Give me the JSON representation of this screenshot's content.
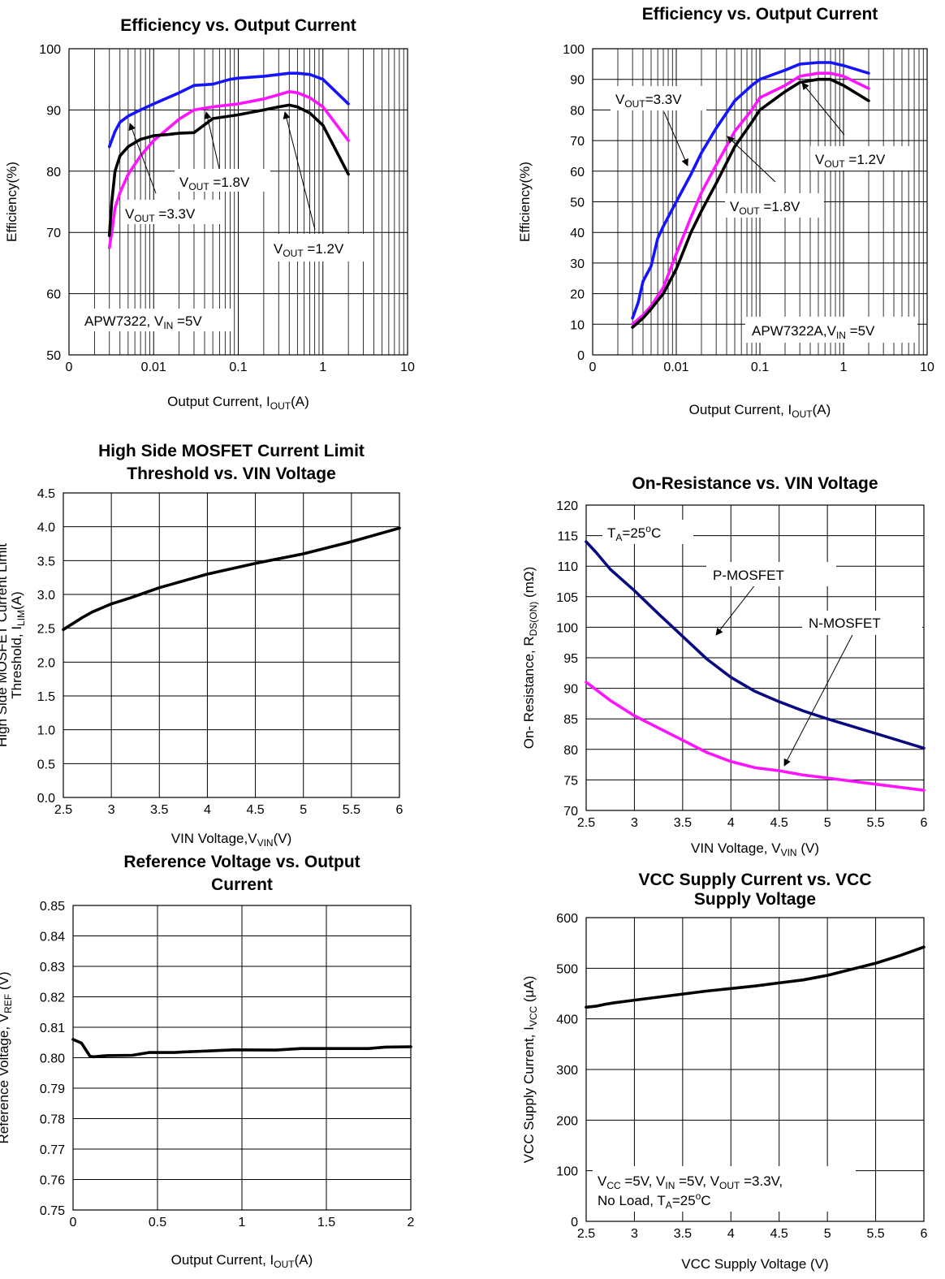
{
  "chart_data": [
    {
      "id": "c1",
      "type": "line",
      "title": "Efficiency vs. Output Current",
      "xlabel": {
        "main": "Output Current, I",
        "sub": "OUT",
        "tail": "(A)"
      },
      "ylabel": {
        "main": "Efficiency(%)",
        "sub": "",
        "tail": ""
      },
      "xscale": "log",
      "xlim": [
        0.001,
        10
      ],
      "ylim": [
        50,
        100
      ],
      "xticks": [
        0.001,
        0.01,
        0.1,
        1,
        10
      ],
      "xtick_labels": [
        "0",
        "0.01",
        "0.1",
        "1",
        "10"
      ],
      "yticks": [
        50,
        60,
        70,
        80,
        90,
        100
      ],
      "ytick_labels": [
        "50",
        "60",
        "70",
        "80",
        "90",
        "100"
      ],
      "grid": true,
      "series": [
        {
          "name": "VOUT=3.3V",
          "color": "#1414ff",
          "x": [
            0.003,
            0.0035,
            0.004,
            0.005,
            0.007,
            0.01,
            0.02,
            0.03,
            0.05,
            0.08,
            0.1,
            0.2,
            0.4,
            0.5,
            0.7,
            1,
            2
          ],
          "y": [
            84,
            86.5,
            88,
            89,
            90,
            91,
            92.8,
            94,
            94.2,
            95,
            95.2,
            95.5,
            96,
            96,
            95.8,
            95,
            91
          ]
        },
        {
          "name": "VOUT=1.8V",
          "color": "#ff14ff",
          "x": [
            0.003,
            0.0032,
            0.0035,
            0.004,
            0.005,
            0.007,
            0.01,
            0.02,
            0.03,
            0.05,
            0.1,
            0.2,
            0.3,
            0.4,
            0.5,
            0.7,
            1,
            2
          ],
          "y": [
            67.5,
            70,
            74,
            76.5,
            79.5,
            82.5,
            85,
            88.5,
            90,
            90.5,
            91,
            91.8,
            92.5,
            93,
            92.8,
            92,
            90.5,
            85
          ]
        },
        {
          "name": "VOUT=1.2V",
          "color": "#000000",
          "x": [
            0.003,
            0.0032,
            0.0035,
            0.004,
            0.005,
            0.007,
            0.01,
            0.015,
            0.02,
            0.03,
            0.05,
            0.08,
            0.1,
            0.2,
            0.3,
            0.4,
            0.5,
            0.7,
            1,
            2
          ],
          "y": [
            69.5,
            75,
            80,
            82.5,
            84,
            85.2,
            85.8,
            86,
            86.2,
            86.3,
            88.6,
            89,
            89.2,
            90,
            90.5,
            90.8,
            90.5,
            89.5,
            87.5,
            79.5
          ]
        }
      ],
      "annotations": [
        {
          "prefix": "V",
          "sub": "OUT",
          "suffix": " =3.3V"
        },
        {
          "prefix": "V",
          "sub": "OUT",
          "suffix": " =1.8V"
        },
        {
          "prefix": "V",
          "sub": "OUT",
          "suffix": " =1.2V"
        },
        {
          "prefix": "APW7322, V",
          "sub": "IN",
          "suffix": " =5V"
        }
      ]
    },
    {
      "id": "c2",
      "type": "line",
      "title": "Efficiency vs. Output Current",
      "xlabel": {
        "main": "Output Current, I",
        "sub": "OUT",
        "tail": "(A)"
      },
      "ylabel": {
        "main": "Efficiency(%)",
        "sub": "",
        "tail": ""
      },
      "xscale": "log",
      "xlim": [
        0.001,
        10
      ],
      "ylim": [
        0,
        100
      ],
      "xticks": [
        0.001,
        0.01,
        0.1,
        1,
        10
      ],
      "xtick_labels": [
        "0",
        "0.01",
        "0.1",
        "1",
        "10"
      ],
      "yticks": [
        0,
        10,
        20,
        30,
        40,
        50,
        60,
        70,
        80,
        90,
        100
      ],
      "ytick_labels": [
        "0",
        "10",
        "20",
        "30",
        "40",
        "50",
        "60",
        "70",
        "80",
        "90",
        "100"
      ],
      "grid": true,
      "series": [
        {
          "name": "VOUT=3.3V",
          "color": "#1414ff",
          "x": [
            0.003,
            0.0035,
            0.004,
            0.005,
            0.006,
            0.007,
            0.01,
            0.015,
            0.02,
            0.03,
            0.05,
            0.08,
            0.1,
            0.2,
            0.3,
            0.5,
            0.7,
            1,
            2
          ],
          "y": [
            12,
            17,
            24,
            29,
            38,
            42,
            50,
            59,
            66,
            74,
            83,
            88,
            90,
            93,
            95,
            95.5,
            95.5,
            94.5,
            92
          ]
        },
        {
          "name": "VOUT=1.8V",
          "color": "#ff14ff",
          "x": [
            0.003,
            0.004,
            0.005,
            0.007,
            0.01,
            0.015,
            0.02,
            0.03,
            0.05,
            0.08,
            0.1,
            0.2,
            0.3,
            0.5,
            0.7,
            1,
            2
          ],
          "y": [
            10,
            13,
            16,
            22,
            33,
            45,
            53,
            62,
            73,
            80,
            84,
            88,
            91,
            92,
            92,
            91,
            87
          ]
        },
        {
          "name": "VOUT=1.2V",
          "color": "#000000",
          "x": [
            0.003,
            0.004,
            0.005,
            0.007,
            0.01,
            0.015,
            0.02,
            0.03,
            0.05,
            0.08,
            0.1,
            0.2,
            0.3,
            0.5,
            0.7,
            1,
            2
          ],
          "y": [
            9,
            12,
            15,
            20,
            28,
            40,
            47,
            56,
            68,
            76,
            80,
            86,
            89,
            90,
            90,
            88,
            83
          ]
        }
      ],
      "annotations": [
        {
          "prefix": "V",
          "sub": "OUT",
          "suffix": "=3.3V"
        },
        {
          "prefix": "V",
          "sub": "OUT",
          "suffix": " =1.2V"
        },
        {
          "prefix": "V",
          "sub": "OUT",
          "suffix": " =1.8V"
        },
        {
          "prefix": "APW7322A,V",
          "sub": "IN",
          "suffix": " =5V"
        }
      ]
    },
    {
      "id": "c3",
      "type": "line",
      "title": "High Side MOSFET Current Limit",
      "title2": "Threshold vs. VIN Voltage",
      "xlabel": {
        "main": "VIN Voltage,V",
        "sub": "VIN",
        "tail": "(V)"
      },
      "ylabel": {
        "main": "High Side MOSFET Current Limit",
        "line2": "Threshold, I",
        "sub": "LIM",
        "tail": "(A)"
      },
      "xscale": "linear",
      "xlim": [
        2.5,
        6
      ],
      "ylim": [
        0,
        4.5
      ],
      "xticks": [
        2.5,
        3,
        3.5,
        4,
        4.5,
        5,
        5.5,
        6
      ],
      "xtick_labels": [
        "2.5",
        "3",
        "3.5",
        "4",
        "4.5",
        "5",
        "5.5",
        "6"
      ],
      "yticks": [
        0,
        0.5,
        1,
        1.5,
        2,
        2.5,
        3,
        3.5,
        4,
        4.5
      ],
      "ytick_labels": [
        "0.0",
        "0.5",
        "1.0",
        "1.5",
        "2.0",
        "2.5",
        "3.0",
        "3.5",
        "4.0",
        "4.5"
      ],
      "grid": true,
      "series": [
        {
          "color": "#000000",
          "x": [
            2.5,
            2.6,
            2.7,
            2.8,
            3.0,
            3.2,
            3.3,
            3.5,
            4.0,
            4.5,
            5.0,
            5.5,
            6.0
          ],
          "y": [
            2.48,
            2.57,
            2.66,
            2.74,
            2.86,
            2.95,
            3.0,
            3.1,
            3.3,
            3.46,
            3.6,
            3.78,
            3.98
          ]
        }
      ],
      "annotations": []
    },
    {
      "id": "c4",
      "type": "line",
      "title": "On-Resistance vs. VIN Voltage",
      "xlabel": {
        "main": "VIN Voltage, V",
        "sub": "VIN",
        "tail": " (V)"
      },
      "ylabel": {
        "main": "On- Resistance, R",
        "sub": "DS(ON)",
        "tail": " (mΩ)"
      },
      "xscale": "linear",
      "xlim": [
        2.5,
        6
      ],
      "ylim": [
        70,
        120
      ],
      "xticks": [
        2.5,
        3,
        3.5,
        4,
        4.5,
        5,
        5.5,
        6
      ],
      "xtick_labels": [
        "2.5",
        "3",
        "3.5",
        "4",
        "4.5",
        "5",
        "5.5",
        "6"
      ],
      "yticks": [
        70,
        75,
        80,
        85,
        90,
        95,
        100,
        105,
        110,
        115,
        120
      ],
      "ytick_labels": [
        "70",
        "75",
        "80",
        "85",
        "90",
        "95",
        "100",
        "105",
        "110",
        "115",
        "120"
      ],
      "grid": true,
      "series": [
        {
          "name": "P-MOSFET",
          "color": "#0a0a80",
          "x": [
            2.5,
            2.6,
            2.75,
            3.0,
            3.25,
            3.5,
            3.75,
            4.0,
            4.25,
            4.5,
            4.75,
            5.0,
            5.5,
            6.0
          ],
          "y": [
            114,
            112.3,
            109.5,
            106,
            102.2,
            98.5,
            94.8,
            91.8,
            89.5,
            87.8,
            86.3,
            85,
            82.6,
            80.2
          ]
        },
        {
          "name": "N-MOSFET",
          "color": "#ff14ff",
          "x": [
            2.5,
            2.75,
            3.0,
            3.25,
            3.5,
            3.75,
            4.0,
            4.25,
            4.5,
            4.75,
            5.0,
            5.5,
            6.0
          ],
          "y": [
            91,
            88,
            85.5,
            83.5,
            81.5,
            79.5,
            78,
            77,
            76.5,
            75.8,
            75.3,
            74.3,
            73.3
          ]
        }
      ],
      "annotations": [
        {
          "prefix": "T",
          "sub": "A",
          "suffix": "=25",
          "sup": "o",
          "tail": "C"
        },
        {
          "text": "P-MOSFET"
        },
        {
          "text": "N-MOSFET"
        }
      ]
    },
    {
      "id": "c5",
      "type": "line",
      "title": "Reference Voltage vs. Output",
      "title2": "Current",
      "xlabel": {
        "main": "Output Current, I",
        "sub": "OUT",
        "tail": "(A)"
      },
      "ylabel": {
        "main": "Reference Voltage, V",
        "sub": "REF",
        "tail": " (V)"
      },
      "xscale": "linear",
      "xlim": [
        0,
        2
      ],
      "ylim": [
        0.75,
        0.85
      ],
      "xticks": [
        0,
        0.5,
        1,
        1.5,
        2
      ],
      "xtick_labels": [
        "0",
        "0.5",
        "1",
        "1.5",
        "2"
      ],
      "yticks": [
        0.75,
        0.76,
        0.77,
        0.78,
        0.79,
        0.8,
        0.81,
        0.82,
        0.83,
        0.84,
        0.85
      ],
      "ytick_labels": [
        "0.75",
        "0.76",
        "0.77",
        "0.78",
        "0.79",
        "0.80",
        "0.81",
        "0.82",
        "0.83",
        "0.84",
        "0.85"
      ],
      "grid": true,
      "series": [
        {
          "color": "#000000",
          "x": [
            0,
            0.05,
            0.1,
            0.12,
            0.2,
            0.35,
            0.45,
            0.6,
            0.65,
            0.8,
            0.95,
            1.2,
            1.35,
            1.5,
            1.75,
            1.85,
            2.0
          ],
          "y": [
            0.806,
            0.8048,
            0.8005,
            0.8003,
            0.8007,
            0.8008,
            0.8017,
            0.8017,
            0.8019,
            0.8022,
            0.8026,
            0.8025,
            0.803,
            0.803,
            0.803,
            0.8035,
            0.8036
          ]
        }
      ],
      "annotations": []
    },
    {
      "id": "c6",
      "type": "line",
      "title": "VCC Supply Current vs. VCC",
      "title2": "Supply Voltage",
      "xlabel": {
        "main": "VCC Supply Voltage (V)",
        "sub": "",
        "tail": ""
      },
      "ylabel": {
        "main": "VCC Supply Current, I",
        "sub": "VCC",
        "tail": " (μA)"
      },
      "xscale": "linear",
      "xlim": [
        2.5,
        6
      ],
      "ylim": [
        0,
        600
      ],
      "xticks": [
        2.5,
        3,
        3.5,
        4,
        4.5,
        5,
        5.5,
        6
      ],
      "xtick_labels": [
        "2.5",
        "3",
        "3.5",
        "4",
        "4.5",
        "5",
        "5.5",
        "6"
      ],
      "yticks": [
        0,
        100,
        200,
        300,
        400,
        500,
        600
      ],
      "ytick_labels": [
        "0",
        "100",
        "200",
        "300",
        "400",
        "500",
        "600"
      ],
      "grid": true,
      "series": [
        {
          "color": "#000000",
          "x": [
            2.5,
            2.6,
            2.7,
            2.8,
            3.0,
            3.25,
            3.5,
            3.75,
            4.0,
            4.25,
            4.5,
            4.75,
            5.0,
            5.25,
            5.5,
            5.75,
            6.0
          ],
          "y": [
            423,
            425,
            429,
            432,
            437,
            443,
            449,
            455,
            460,
            465,
            471,
            477,
            486,
            498,
            510,
            525,
            542
          ]
        }
      ],
      "annotations": [
        {
          "line1": [
            {
              "t": "V"
            },
            {
              "s": "CC"
            },
            {
              "t": " =5V, V"
            },
            {
              "s": "IN"
            },
            {
              "t": " =5V, V"
            },
            {
              "s": "OUT"
            },
            {
              "t": " =3.3V,"
            }
          ],
          "line2": [
            {
              "t": "No Load, T"
            },
            {
              "s": "A"
            },
            {
              "t": "=25"
            },
            {
              "u": "o"
            },
            {
              "t": "C"
            }
          ]
        }
      ]
    }
  ]
}
